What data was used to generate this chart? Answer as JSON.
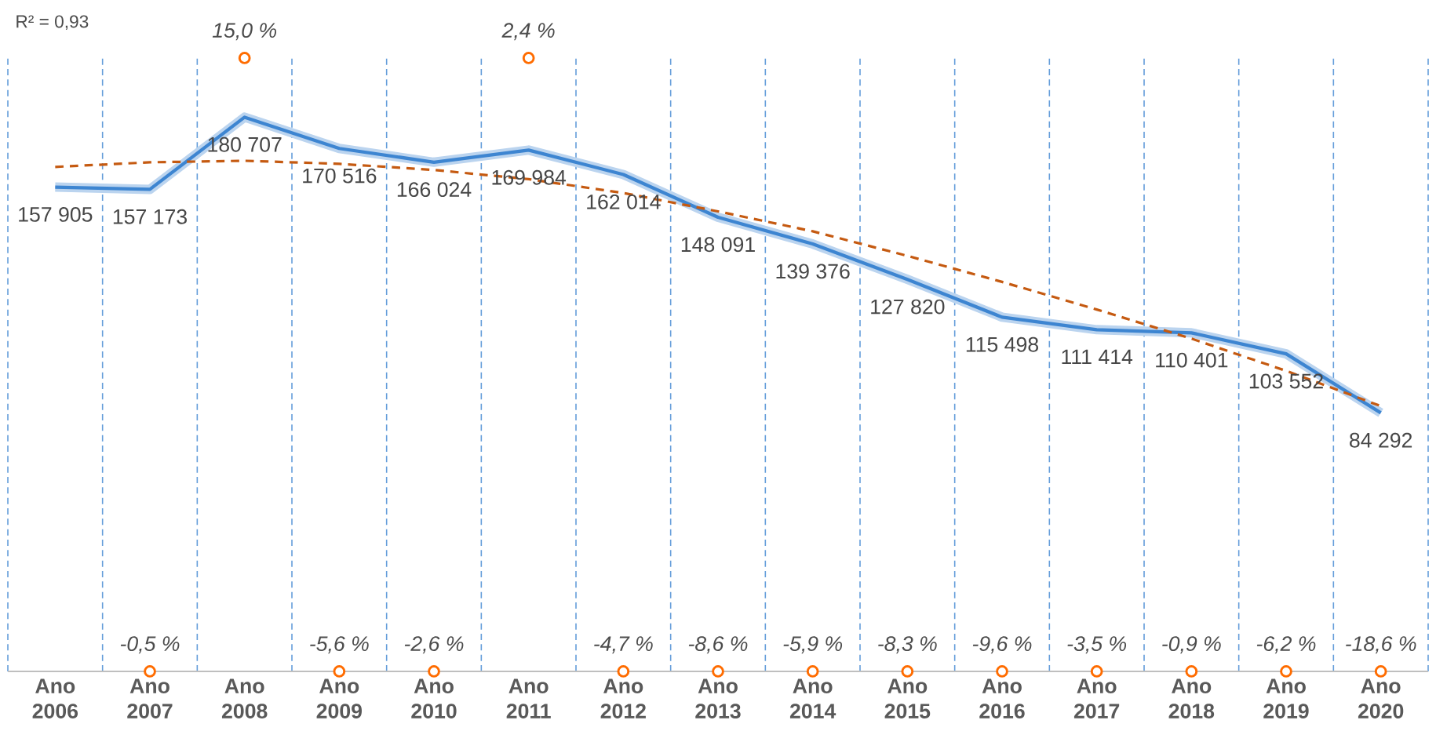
{
  "chart_data": {
    "type": "line",
    "categories": [
      "Ano 2006",
      "Ano 2007",
      "Ano 2008",
      "Ano 2009",
      "Ano 2010",
      "Ano 2011",
      "Ano 2012",
      "Ano 2013",
      "Ano 2014",
      "Ano 2015",
      "Ano 2016",
      "Ano 2017",
      "Ano 2018",
      "Ano 2019",
      "Ano 2020"
    ],
    "series": [
      {
        "color": "#3d85d1",
        "values": [
          157905,
          157173,
          180707,
          170516,
          166024,
          169984,
          162014,
          148091,
          139376,
          127820,
          115498,
          111414,
          110401,
          103552,
          84292
        ],
        "value_labels": [
          "157 905",
          "157 173",
          "180 707",
          "170 516",
          "166 024",
          "169 984",
          "162 014",
          "148 091",
          "139 376",
          "127 820",
          "115 498",
          "111 414",
          "110 401",
          "103 552",
          "84 292"
        ]
      },
      {
        "type": "line",
        "color": "#c55a11",
        "line_style": "dashed",
        "values": [
          164500,
          166000,
          166500,
          165500,
          163500,
          160500,
          156000,
          150000,
          143500,
          135500,
          127000,
          118000,
          108500,
          98000,
          86500
        ]
      }
    ],
    "ylim": [
      0,
      200000
    ],
    "tick_labels": "x",
    "grid": true,
    "annotations": [
      "R² = 0,93",
      {
        "text": "-0,5 %",
        "x": "Ano 2007",
        "y": 0
      },
      {
        "text": "15,0 %",
        "x": "Ano 2008",
        "y": 200000
      },
      {
        "text": "-5,6 %",
        "x": "Ano 2009",
        "y": 0
      },
      {
        "text": "-2,6 %",
        "x": "Ano 2010",
        "y": 0
      },
      {
        "text": "2,4 %",
        "x": "Ano 2011",
        "y": 200000
      },
      {
        "text": "-4,7 %",
        "x": "Ano 2012",
        "y": 0
      },
      {
        "text": "-8,6 %",
        "x": "Ano 2013",
        "y": 0
      },
      {
        "text": "-5,9 %",
        "x": "Ano 2014",
        "y": 0
      },
      {
        "text": "-8,3 %",
        "x": "Ano 2015",
        "y": 0
      },
      {
        "text": "-9,6 %",
        "x": "Ano 2016",
        "y": 0
      },
      {
        "text": "-3,5 %",
        "x": "Ano 2017",
        "y": 0
      },
      {
        "text": "-0,9 %",
        "x": "Ano 2018",
        "y": 0
      },
      {
        "text": "-6,2 %",
        "x": "Ano 2019",
        "y": 0
      },
      {
        "text": "-18,6 %",
        "x": "Ano 2020",
        "y": 0
      }
    ]
  }
}
